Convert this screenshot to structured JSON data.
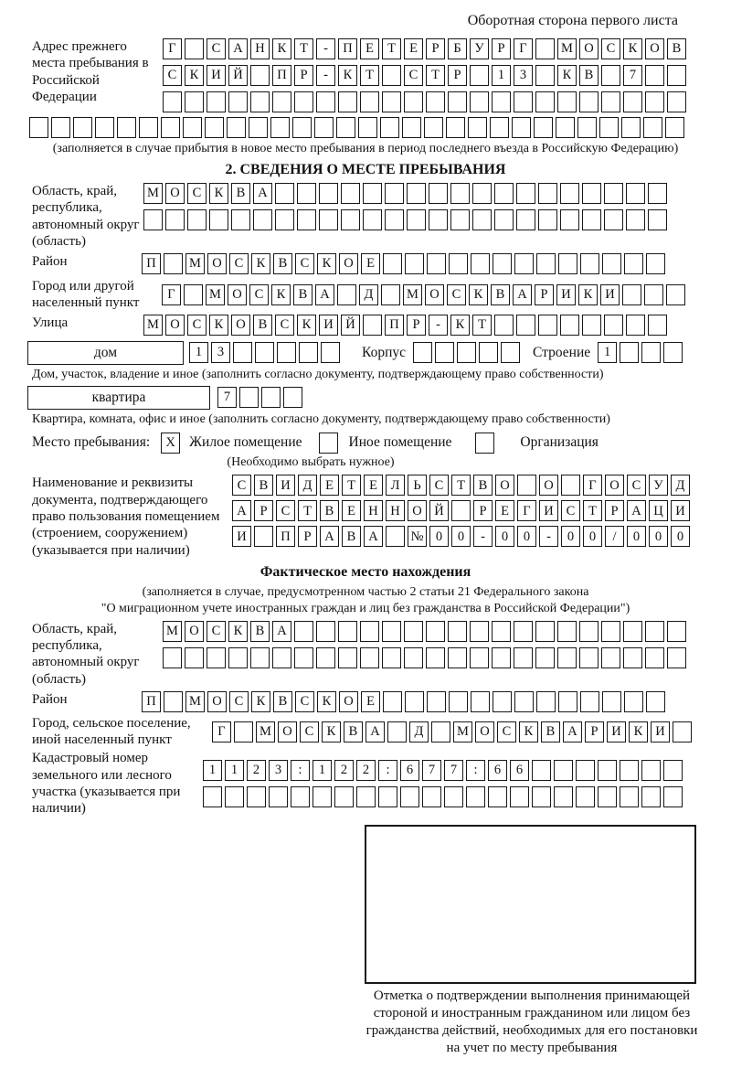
{
  "page": {
    "header_note": "Оборотная сторона первого листа"
  },
  "prev_address": {
    "label": "Адрес прежнего места пребывания в Российской Федерации",
    "rows": [
      {
        "chars": "Г САНКТ-ПЕТЕРБУРГ МОСКОВ",
        "count": 24
      },
      {
        "chars": "СКИЙ ПР-КТ СТР 13 КВ 7",
        "count": 24
      },
      {
        "chars": "",
        "count": 24
      },
      {
        "chars": "",
        "count": 30
      }
    ],
    "note": "(заполняется в случае прибытия в новое место пребывания в период последнего въезда в Российскую Федерацию)"
  },
  "section2": {
    "title": "2. СВЕДЕНИЯ О МЕСТЕ ПРЕБЫВАНИЯ",
    "region": {
      "label": "Область, край, республика, автономный округ (область)",
      "rows": [
        {
          "chars": "МОСКВА",
          "count": 24
        },
        {
          "chars": "",
          "count": 24
        }
      ]
    },
    "district": {
      "label": "Район",
      "row": {
        "chars": "П МОСКВСКОЕ",
        "count": 24
      }
    },
    "city": {
      "label": "Город или другой населенный пункт",
      "row": {
        "chars": "Г МОСКВА Д МОСКВАРИКИ",
        "count": 24
      }
    },
    "street": {
      "label": "Улица",
      "row": {
        "chars": "МОСКОВСКИЙ ПР-КТ",
        "count": 24
      }
    },
    "house": {
      "box_label": "дом",
      "row": {
        "chars": "13",
        "count": 7
      },
      "korpus_label": "Корпус",
      "korpus_row": {
        "chars": "",
        "count": 5
      },
      "stroenie_label": "Строение",
      "stroenie_row": {
        "chars": "1",
        "count": 4
      },
      "note": "Дом, участок, владение и иное (заполнить согласно документу, подтверждающему право собственности)"
    },
    "apartment": {
      "box_label": "квартира",
      "row": {
        "chars": "7",
        "count": 4
      },
      "note": "Квартира, комната, офис и иное (заполнить согласно документу, подтверждающему право собственности)"
    },
    "stay_type": {
      "label": "Место пребывания:",
      "options": [
        {
          "label": "Жилое помещение",
          "checked": "X"
        },
        {
          "label": "Иное помещение",
          "checked": ""
        },
        {
          "label": "Организация",
          "checked": ""
        }
      ],
      "note": "(Необходимо выбрать нужное)"
    },
    "document": {
      "label": "Наименование и реквизиты документа, подтверждающего право пользования помещением (строением, сооружением) (указывается при наличии)",
      "rows": [
        {
          "chars": "СВИДЕТЕЛЬСТВО О ГОСУД",
          "count": 21
        },
        {
          "chars": "АРСТВЕННОЙ РЕГИСТРАЦИ",
          "count": 21
        },
        {
          "chars": "И ПРАВА №00-00-00/000",
          "count": 21
        }
      ]
    }
  },
  "actual_location": {
    "title": "Фактическое место нахождения",
    "note_line1": "(заполняется в случае, предусмотренном частью 2 статьи 21 Федерального закона",
    "note_line2": "\"О миграционном учете иностранных граждан и лиц без гражданства в Российской Федерации\")",
    "region": {
      "label": "Область, край, республика, автономный округ (область)",
      "rows": [
        {
          "chars": "МОСКВА",
          "count": 24
        },
        {
          "chars": "",
          "count": 24
        }
      ]
    },
    "district": {
      "label": "Район",
      "row": {
        "chars": "П МОСКВСКОЕ",
        "count": 24
      }
    },
    "city": {
      "label": "Город, сельское поселение, иной населенный пункт",
      "row": {
        "chars": "Г МОСКВА Д МОСКВАРИКИ",
        "count": 22
      }
    },
    "cadastre": {
      "label": "Кадастровый номер земельного или лесного участка (указывается при наличии)",
      "rows": [
        {
          "chars": "1123:122:677:66",
          "count": 22
        },
        {
          "chars": "",
          "count": 22
        }
      ]
    }
  },
  "stamp": {
    "caption": "Отметка о подтверждении выполнения принимающей стороной и иностранным гражданином или лицом без гражданства действий, необходимых для его постановки на учет по месту пребывания"
  }
}
